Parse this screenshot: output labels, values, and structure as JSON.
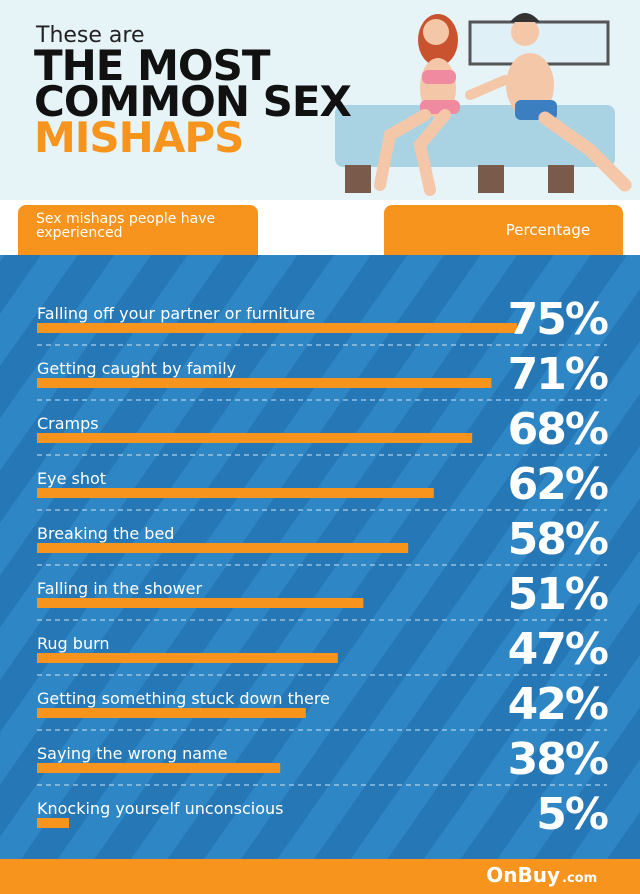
{
  "chart_data": {
    "type": "bar",
    "orientation": "horizontal",
    "title_intro": "These are",
    "title_line1": "THE MOST",
    "title_line2": "COMMON SEX",
    "title_line3": "MISHAPS",
    "category_header": "Sex mishaps people have experienced",
    "value_header": "Percentage",
    "categories": [
      "Falling off your partner or furniture",
      "Getting caught by family",
      "Cramps",
      "Eye shot",
      "Breaking the bed",
      "Falling in the shower",
      "Rug burn",
      "Getting something stuck down there",
      "Saying the wrong name",
      "Knocking yourself unconscious"
    ],
    "values": [
      75,
      71,
      68,
      62,
      58,
      51,
      47,
      42,
      38,
      5
    ],
    "value_labels": [
      "75%",
      "71%",
      "68%",
      "62%",
      "58%",
      "51%",
      "47%",
      "42%",
      "38%",
      "5%"
    ],
    "color": "#f7941d"
  },
  "footer": {
    "brand": "OnBuy",
    "domain": ".com"
  }
}
